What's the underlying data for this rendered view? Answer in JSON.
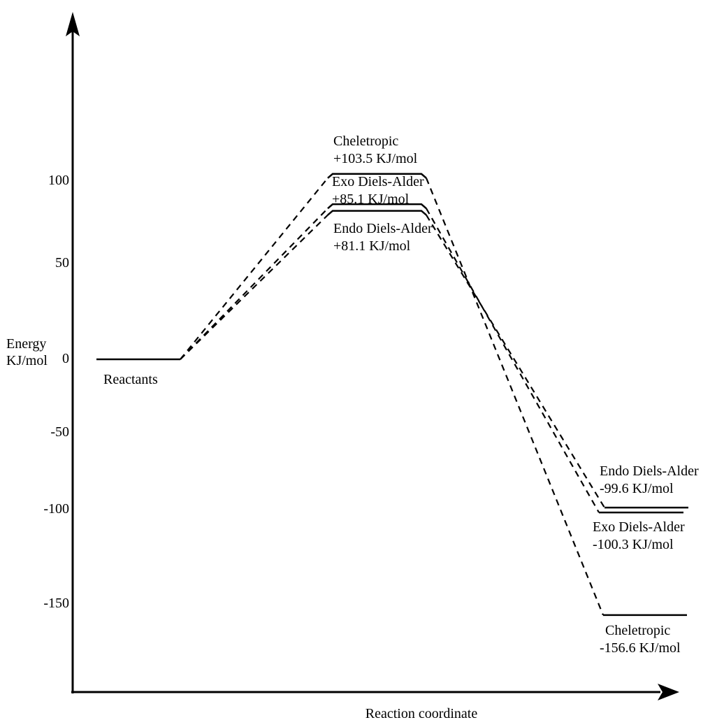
{
  "figure": {
    "y_axis": {
      "title_line1": "Energy",
      "title_line2": "KJ/mol",
      "tick_labels": [
        "100",
        "50",
        "0",
        "-50",
        "-100",
        "-150"
      ]
    },
    "x_axis": {
      "title": "Reaction coordinate"
    },
    "reactants_label": "Reactants",
    "transition_states": [
      {
        "name": "Cheletropic",
        "value": "+103.5 KJ/mol"
      },
      {
        "name": "Exo Diels-Alder",
        "value": "+85.1 KJ/mol"
      },
      {
        "name": "Endo Diels-Alder",
        "value": "+81.1 KJ/mol"
      }
    ],
    "products": [
      {
        "name": "Endo Diels-Alder",
        "value": "-99.6 KJ/mol"
      },
      {
        "name": "Exo Diels-Alder",
        "value": "-100.3 KJ/mol"
      },
      {
        "name": "Cheletropic",
        "value": "-156.6 KJ/mol"
      }
    ],
    "colors": {
      "ink": "#000000",
      "background": "#ffffff"
    }
  },
  "chart_data": {
    "type": "line",
    "xlabel": "Reaction coordinate",
    "ylabel": "Energy KJ/mol",
    "yticks": [
      100,
      50,
      0,
      -50,
      -100,
      -150
    ],
    "ylim": [
      -200,
      200
    ],
    "unit": "KJ/mol",
    "reactant_energy": 0,
    "series": [
      {
        "name": "Cheletropic",
        "transition_state": 103.5,
        "product": -156.6
      },
      {
        "name": "Exo Diels-Alder",
        "transition_state": 85.1,
        "product": -100.3
      },
      {
        "name": "Endo Diels-Alder",
        "transition_state": 81.1,
        "product": -99.6
      }
    ]
  }
}
